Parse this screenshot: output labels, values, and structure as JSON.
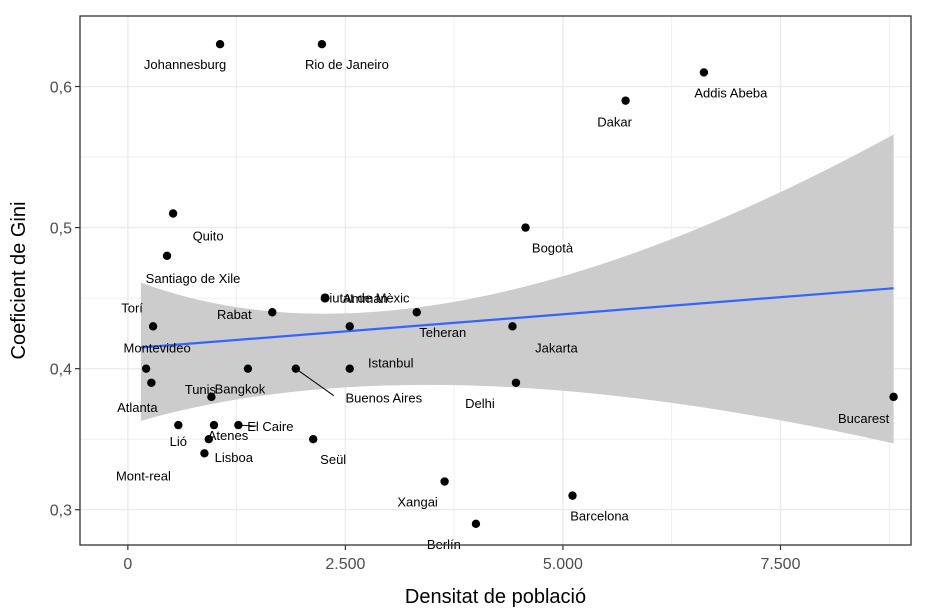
{
  "chart_data": {
    "type": "scatter",
    "title": "",
    "xlabel": "Densitat de població",
    "ylabel": "Coeficient de Gini",
    "xlim": [
      -550,
      9000
    ],
    "ylim": [
      0.275,
      0.65
    ],
    "xticks": [
      0,
      2500,
      5000,
      7500
    ],
    "xtick_labels": [
      "0",
      "2.500",
      "5.000",
      "7.500"
    ],
    "yticks": [
      0.3,
      0.4,
      0.5,
      0.6
    ],
    "ytick_labels": [
      "0,3",
      "0,4",
      "0,5",
      "0,6"
    ],
    "grid": true,
    "legend": "none",
    "colors": {
      "points": "#000000",
      "fit_line": "#3366ff",
      "confidence_band": "#cccccc",
      "panel_border": "#333333",
      "grid": "#ebebeb"
    },
    "fit": {
      "method": "linear",
      "x": [
        150,
        8800
      ],
      "y": [
        0.415,
        0.457
      ],
      "ci_lower": [
        0.363,
        0.347
      ],
      "ci_upper": [
        0.461,
        0.566
      ]
    },
    "points": [
      {
        "label": "Johannesburg",
        "x": 1060,
        "y": 0.63
      },
      {
        "label": "Rio de Janeiro",
        "x": 2230,
        "y": 0.63
      },
      {
        "label": "Addis Abeba",
        "x": 6620,
        "y": 0.61
      },
      {
        "label": "Dakar",
        "x": 5720,
        "y": 0.59
      },
      {
        "label": "Quito",
        "x": 520,
        "y": 0.51
      },
      {
        "label": "Bogotà",
        "x": 4570,
        "y": 0.5
      },
      {
        "label": "Santiago de Xile",
        "x": 450,
        "y": 0.48
      },
      {
        "label": "Rabat",
        "x": 1660,
        "y": 0.44
      },
      {
        "label": "Amman",
        "x": 2270,
        "y": 0.45
      },
      {
        "label": "Teheran",
        "x": 3320,
        "y": 0.44
      },
      {
        "label": "Torí",
        "x": 290,
        "y": 0.43
      },
      {
        "label": "Jakarta",
        "x": 4420,
        "y": 0.43
      },
      {
        "label": "Montevideo",
        "x": 210,
        "y": 0.4
      },
      {
        "label": "Ciutat de Mèxic",
        "x": 2550,
        "y": 0.43
      },
      {
        "label": "Istanbul",
        "x": 2550,
        "y": 0.4
      },
      {
        "label": "Bangkok",
        "x": 1380,
        "y": 0.4
      },
      {
        "label": "Buenos Aires",
        "x": 1930,
        "y": 0.4
      },
      {
        "label": "Atlanta",
        "x": 270,
        "y": 0.39
      },
      {
        "label": "Tunis",
        "x": 960,
        "y": 0.38
      },
      {
        "label": "Delhi",
        "x": 4460,
        "y": 0.39
      },
      {
        "label": "Bucarest",
        "x": 8800,
        "y": 0.38
      },
      {
        "label": "Atenes",
        "x": 990,
        "y": 0.36
      },
      {
        "label": "Lió",
        "x": 580,
        "y": 0.36
      },
      {
        "label": "El Caire",
        "x": 1270,
        "y": 0.36
      },
      {
        "label": "Lisboa",
        "x": 930,
        "y": 0.35
      },
      {
        "label": "Seül",
        "x": 2130,
        "y": 0.35
      },
      {
        "label": "Mont-real",
        "x": 880,
        "y": 0.34
      },
      {
        "label": "Xangai",
        "x": 3640,
        "y": 0.32
      },
      {
        "label": "Barcelona",
        "x": 5110,
        "y": 0.31
      },
      {
        "label": "Berlín",
        "x": 4000,
        "y": 0.29
      }
    ]
  }
}
